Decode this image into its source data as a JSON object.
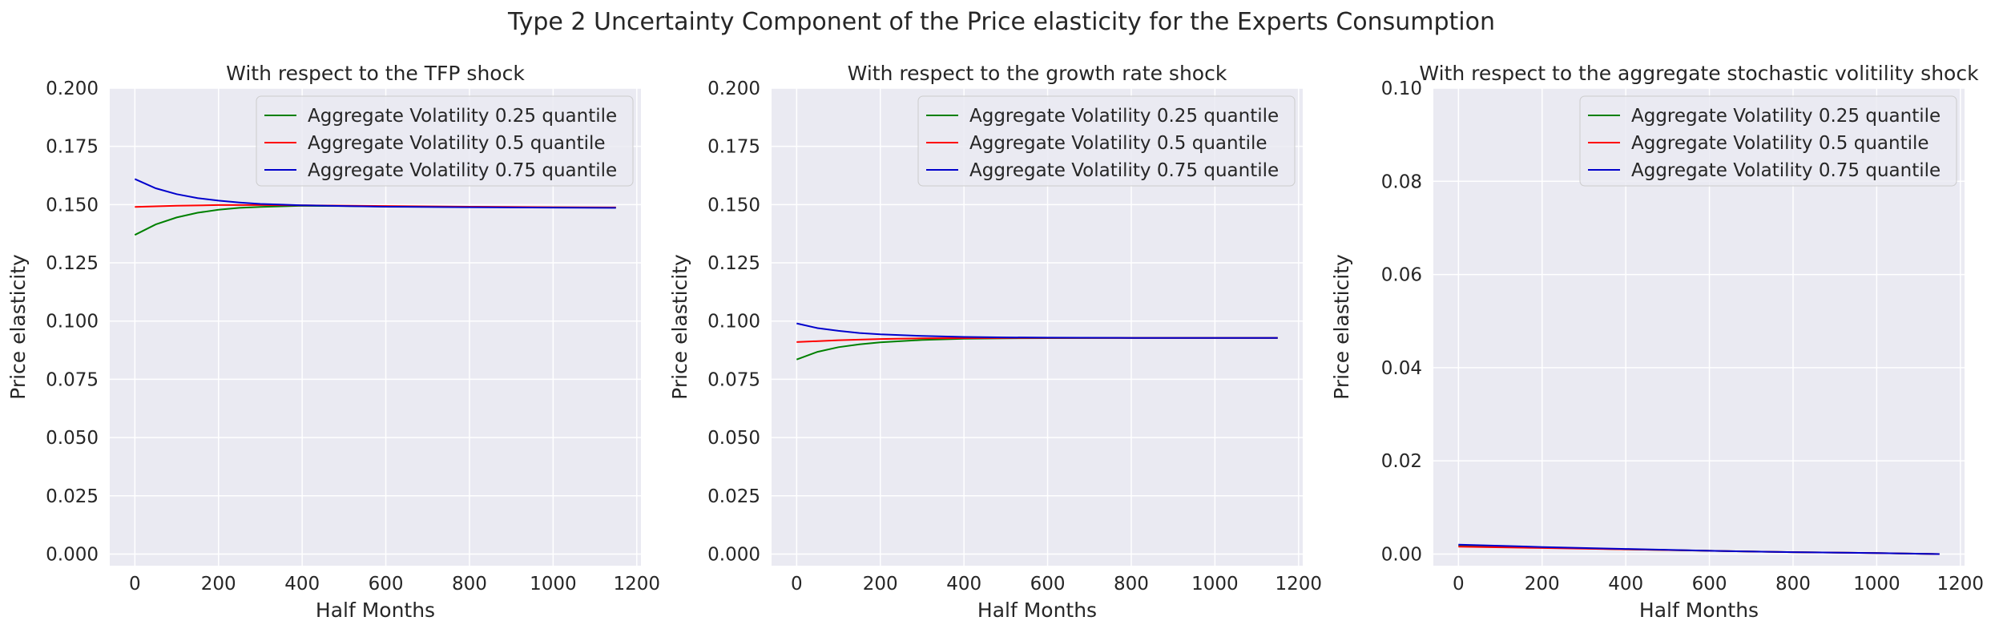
{
  "figure": {
    "title": "Type 2 Uncertainty Component of the Price elasticity for the Experts Consumption"
  },
  "colors": {
    "background": "#eaeaf2",
    "grid": "#ffffff",
    "series": [
      "#008000",
      "#ff0000",
      "#0000cc"
    ]
  },
  "chart_data": [
    {
      "type": "line",
      "title": "With respect to the TFP shock",
      "xlabel": "Half Months",
      "ylabel": "Price elasticity",
      "xlim": [
        -60,
        1210
      ],
      "ylim": [
        -0.005,
        0.2
      ],
      "xticks": [
        0,
        200,
        400,
        600,
        800,
        1000,
        1200
      ],
      "yticks": [
        0.0,
        0.025,
        0.05,
        0.075,
        0.1,
        0.125,
        0.15,
        0.175,
        0.2
      ],
      "ytick_labels": [
        "0.000",
        "0.025",
        "0.050",
        "0.075",
        "0.100",
        "0.125",
        "0.150",
        "0.175",
        "0.200"
      ],
      "grid": true,
      "legend": "top-right",
      "series": [
        {
          "name": "Aggregate Volatility 0.25 quantile",
          "x": [
            0,
            50,
            100,
            150,
            200,
            250,
            300,
            400,
            500,
            600,
            800,
            1000,
            1150
          ],
          "y": [
            0.137,
            0.1415,
            0.1445,
            0.1465,
            0.1478,
            0.1486,
            0.149,
            0.1495,
            0.1494,
            0.1492,
            0.149,
            0.1488,
            0.1487
          ]
        },
        {
          "name": "Aggregate Volatility 0.5 quantile",
          "x": [
            0,
            100,
            200,
            300,
            400,
            600,
            800,
            1000,
            1150
          ],
          "y": [
            0.149,
            0.1495,
            0.1498,
            0.1498,
            0.1497,
            0.1494,
            0.1491,
            0.1489,
            0.1488
          ]
        },
        {
          "name": "Aggregate Volatility 0.75 quantile",
          "x": [
            0,
            50,
            100,
            150,
            200,
            250,
            300,
            400,
            500,
            600,
            800,
            1000,
            1150
          ],
          "y": [
            0.161,
            0.157,
            0.1545,
            0.1528,
            0.1517,
            0.1509,
            0.1503,
            0.1497,
            0.1494,
            0.1491,
            0.1489,
            0.1487,
            0.1486
          ]
        }
      ]
    },
    {
      "type": "line",
      "title": "With respect to the growth rate shock",
      "xlabel": "Half Months",
      "ylabel": "Price elasticity",
      "xlim": [
        -60,
        1210
      ],
      "ylim": [
        -0.005,
        0.2
      ],
      "xticks": [
        0,
        200,
        400,
        600,
        800,
        1000,
        1200
      ],
      "yticks": [
        0.0,
        0.025,
        0.05,
        0.075,
        0.1,
        0.125,
        0.15,
        0.175,
        0.2
      ],
      "ytick_labels": [
        "0.000",
        "0.025",
        "0.050",
        "0.075",
        "0.100",
        "0.125",
        "0.150",
        "0.175",
        "0.200"
      ],
      "grid": true,
      "legend": "top-right",
      "series": [
        {
          "name": "Aggregate Volatility 0.25 quantile",
          "x": [
            0,
            50,
            100,
            150,
            200,
            300,
            400,
            500,
            600,
            800,
            1000,
            1150
          ],
          "y": [
            0.0835,
            0.0868,
            0.0888,
            0.09,
            0.0909,
            0.0919,
            0.0924,
            0.0926,
            0.0927,
            0.0928,
            0.0928,
            0.0928
          ]
        },
        {
          "name": "Aggregate Volatility 0.5 quantile",
          "x": [
            0,
            100,
            200,
            300,
            400,
            600,
            800,
            1000,
            1150
          ],
          "y": [
            0.091,
            0.0918,
            0.0923,
            0.0926,
            0.0927,
            0.0928,
            0.0928,
            0.0928,
            0.0928
          ]
        },
        {
          "name": "Aggregate Volatility 0.75 quantile",
          "x": [
            0,
            50,
            100,
            150,
            200,
            300,
            400,
            500,
            600,
            800,
            1000,
            1150
          ],
          "y": [
            0.099,
            0.097,
            0.0958,
            0.0949,
            0.0943,
            0.0936,
            0.0932,
            0.093,
            0.0929,
            0.0928,
            0.0928,
            0.0928
          ]
        }
      ]
    },
    {
      "type": "line",
      "title": "With respect to the aggregate stochastic volitility shock",
      "xlabel": "Half Months",
      "ylabel": "Price elasticity",
      "xlim": [
        -60,
        1210
      ],
      "ylim": [
        -0.0025,
        0.1
      ],
      "xticks": [
        0,
        200,
        400,
        600,
        800,
        1000,
        1200
      ],
      "yticks": [
        0.0,
        0.02,
        0.04,
        0.06,
        0.08,
        0.1
      ],
      "ytick_labels": [
        "0.00",
        "0.02",
        "0.04",
        "0.06",
        "0.08",
        "0.10"
      ],
      "grid": true,
      "legend": "top-right",
      "series": [
        {
          "name": "Aggregate Volatility 0.25 quantile",
          "x": [
            0,
            200,
            400,
            600,
            800,
            1000,
            1150
          ],
          "y": [
            0.0018,
            0.0014,
            0.001,
            0.0007,
            0.0004,
            0.0002,
            0.0
          ]
        },
        {
          "name": "Aggregate Volatility 0.5 quantile",
          "x": [
            0,
            200,
            400,
            600,
            800,
            1000,
            1150
          ],
          "y": [
            0.0016,
            0.0013,
            0.001,
            0.0007,
            0.0004,
            0.0002,
            0.0
          ]
        },
        {
          "name": "Aggregate Volatility 0.75 quantile",
          "x": [
            0,
            200,
            400,
            600,
            800,
            1000,
            1150
          ],
          "y": [
            0.002,
            0.0015,
            0.0011,
            0.0007,
            0.0004,
            0.0002,
            0.0
          ]
        }
      ]
    }
  ]
}
